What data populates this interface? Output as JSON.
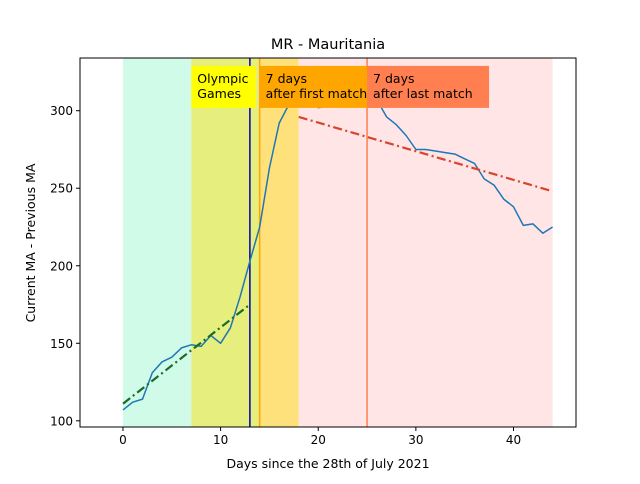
{
  "chart_data": {
    "type": "line",
    "title": "MR - Mauritania",
    "xlabel": "Days since the 28th of July 2021",
    "ylabel": "Current MA - Previous MA",
    "xlim": [
      -4.4,
      46.4
    ],
    "ylim": [
      96,
      334
    ],
    "xticks": [
      0,
      10,
      20,
      30,
      40
    ],
    "yticks": [
      100,
      150,
      200,
      250,
      300
    ],
    "grid": false,
    "regions": [
      {
        "name": "pre-games",
        "x0": 0,
        "x1": 7,
        "color": "#d0fbe9"
      },
      {
        "name": "olympic-games",
        "x0": 7,
        "x1": 14,
        "color": "#e6ee7d"
      },
      {
        "name": "after-first-match",
        "x0": 14,
        "x1": 18,
        "color": "#ffe17b"
      },
      {
        "name": "after-last-match",
        "x0": 18,
        "x1": 44,
        "color": "#ffe5e5"
      }
    ],
    "vlines": [
      {
        "name": "first-match",
        "x": 13,
        "color": "#0000aa"
      },
      {
        "name": "first-match-plus-7",
        "x": 14,
        "color": "#ffa500"
      },
      {
        "name": "last-match-plus-7",
        "x": 25,
        "color": "#ff7f50"
      }
    ],
    "annotations": [
      {
        "name": "olympic-games",
        "lines": [
          "Olympic",
          "Games"
        ],
        "x": 7,
        "y": 316,
        "bg": "#ffff00"
      },
      {
        "name": "first-match",
        "lines": [
          "7 days",
          "after first match"
        ],
        "x": 14,
        "y": 316,
        "bg": "#ffa500"
      },
      {
        "name": "last-match",
        "lines": [
          "7 days",
          "after last match"
        ],
        "x": 25,
        "y": 316,
        "bg": "#ff7f50"
      }
    ],
    "series": [
      {
        "style": "solid",
        "color": "#1f77b4",
        "x": [
          0,
          1,
          2,
          3,
          4,
          5,
          6,
          7,
          8,
          9,
          10,
          11,
          12,
          13,
          14,
          15,
          16,
          17,
          18,
          19,
          20,
          21,
          22,
          23,
          24,
          25,
          26,
          27,
          28,
          29,
          30,
          31,
          32,
          33,
          34,
          35,
          36,
          37,
          38,
          39,
          40,
          41,
          42,
          43,
          44
        ],
        "y": [
          107,
          112,
          114,
          131,
          138,
          141,
          147,
          149,
          148,
          155,
          150,
          160,
          180,
          203,
          225,
          263,
          292,
          304,
          309,
          305,
          302,
          303,
          306,
          309,
          324,
          319,
          307,
          296,
          291,
          284,
          275,
          275,
          274,
          273,
          272,
          269,
          266,
          256,
          252,
          243,
          238,
          226,
          227,
          221,
          225
        ]
      },
      {
        "style": "dashdot",
        "color": "#1a6b2a",
        "x": [
          0,
          13
        ],
        "y": [
          111,
          175
        ]
      },
      {
        "style": "dashdot",
        "color": "#d9452c",
        "x": [
          18,
          44
        ],
        "y": [
          296,
          248
        ]
      }
    ]
  }
}
